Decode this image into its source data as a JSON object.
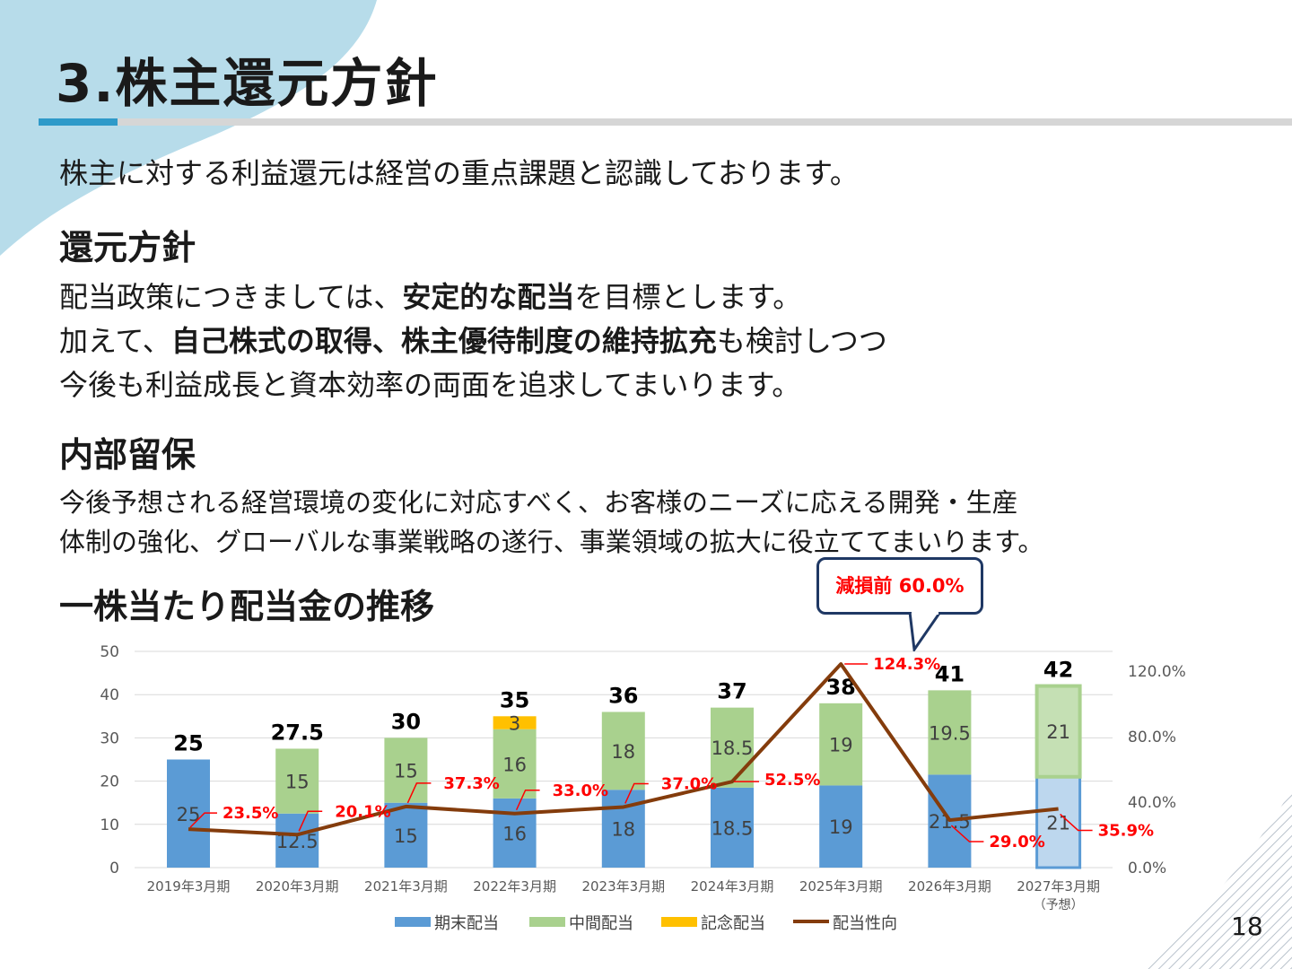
{
  "title": "3.株主還元方針",
  "intro": "株主に対する利益還元は経営の重点課題と認識しております。",
  "policy": {
    "heading": "還元方針",
    "line1_pre": "配当政策につきましては、",
    "line1_bold": "安定的な配当",
    "line1_post": "を目標とします。",
    "line2_pre": "加えて、",
    "line2_bold": "自己株式の取得、株主優待制度の維持拡充",
    "line2_post": "も検討しつつ",
    "line3": "今後も利益成長と資本効率の両面を追求してまいります。"
  },
  "retained": {
    "heading": "内部留保",
    "line1": "今後予想される経営環境の変化に対応すべく、お客様のニーズに応える開発・生産",
    "line2": "体制の強化、グローバルな事業戦略の遂行、事業領域の拡大に役立ててまいります。"
  },
  "chart_heading": "一株当たり配当金の推移",
  "callout": "減損前 60.0%",
  "page_number": "18",
  "colors": {
    "year_end": "#5b9bd5",
    "interim": "#a9d18e",
    "commemorative": "#ffc000",
    "payout": "#843c0c",
    "ratio_label": "#ff0000",
    "accent": "#2e9ac9"
  },
  "chart_data": {
    "type": "bar",
    "categories": [
      "2019年3月期",
      "2020年3月期",
      "2021年3月期",
      "2022年3月期",
      "2023年3月期",
      "2024年3月期",
      "2025年3月期",
      "2026年3月期",
      "2027年3月期"
    ],
    "category_note": "（予想）",
    "series": [
      {
        "name": "期末配当",
        "values": [
          25,
          12.5,
          15,
          16,
          18,
          18.5,
          19,
          21.5,
          21
        ],
        "labels": [
          "25",
          "12.5",
          "15",
          "16",
          "18",
          "18.5",
          "19",
          "21.5",
          "21"
        ]
      },
      {
        "name": "中間配当",
        "values": [
          0,
          15,
          15,
          16,
          18,
          18.5,
          19,
          19.5,
          21
        ],
        "labels": [
          "",
          "15",
          "15",
          "16",
          "18",
          "18.5",
          "19",
          "19.5",
          "21"
        ]
      },
      {
        "name": "記念配当",
        "values": [
          0,
          0,
          0,
          3,
          0,
          0,
          0,
          0,
          0
        ],
        "labels": [
          "",
          "",
          "",
          "3",
          "",
          "",
          "",
          "",
          ""
        ]
      },
      {
        "name": "配当性向",
        "type": "line",
        "axis": "right",
        "values": [
          23.5,
          20.1,
          37.3,
          33.0,
          37.0,
          52.5,
          124.3,
          29.0,
          35.9
        ],
        "labels": [
          "23.5%",
          "20.1%",
          "37.3%",
          "33.0%",
          "37.0%",
          "52.5%",
          "124.3%",
          "29.0%",
          "35.9%"
        ]
      }
    ],
    "totals": [
      "25",
      "27.5",
      "30",
      "35",
      "36",
      "37",
      "38",
      "41",
      "42"
    ],
    "forecast_index": 8,
    "y_left": {
      "min": 0,
      "max": 50,
      "ticks": [
        "0",
        "10",
        "20",
        "30",
        "40",
        "50"
      ]
    },
    "y_right": {
      "min": 0,
      "max": 132,
      "ticks": [
        "0.0%",
        "40.0%",
        "80.0%",
        "120.0%"
      ],
      "tick_values": [
        0,
        40,
        80,
        120
      ]
    },
    "grid": true,
    "legend_position": "bottom"
  }
}
